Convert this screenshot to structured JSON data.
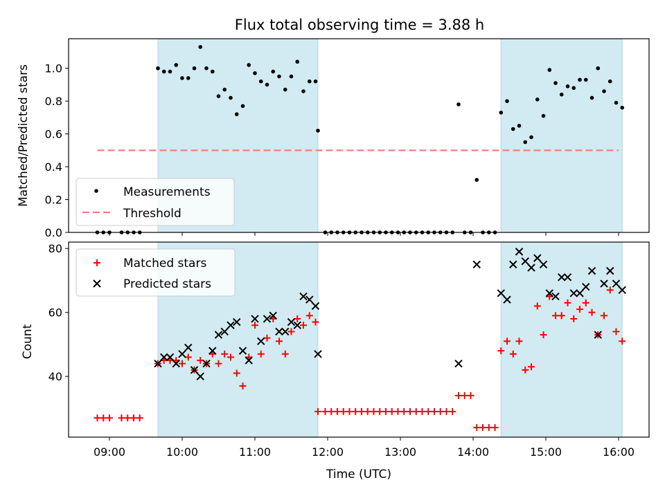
{
  "title": "Flux total observing time = 3.88 h",
  "chart_data": [
    {
      "type": "scatter",
      "ylabel": "Matched/Predicted stars",
      "xlabel": "",
      "ylim": [
        0,
        1.18
      ],
      "yticks": [
        "0.0",
        "0.2",
        "0.4",
        "0.6",
        "0.8",
        "1.0"
      ],
      "legend_position": "lower-left",
      "threshold": {
        "name": "Threshold",
        "y": 0.5,
        "x_start": "08:50",
        "x_end": "16:00",
        "color": "#f08080"
      },
      "shaded_intervals": [
        {
          "start": "09:40",
          "end": "11:52"
        },
        {
          "start": "14:23",
          "end": "16:03"
        }
      ],
      "shade_color": "#add8e6",
      "series": [
        {
          "name": "Measurements",
          "color": "#000000",
          "points": [
            [
              "08:50",
              0.0
            ],
            [
              "08:55",
              0.0
            ],
            [
              "09:00",
              0.0
            ],
            [
              "09:10",
              0.0
            ],
            [
              "09:15",
              0.0
            ],
            [
              "09:20",
              0.0
            ],
            [
              "09:25",
              0.0
            ],
            [
              "09:40",
              1.0
            ],
            [
              "09:45",
              0.98
            ],
            [
              "09:50",
              0.98
            ],
            [
              "09:55",
              1.02
            ],
            [
              "10:00",
              0.94
            ],
            [
              "10:05",
              0.94
            ],
            [
              "10:10",
              1.0
            ],
            [
              "10:15",
              1.13
            ],
            [
              "10:20",
              1.0
            ],
            [
              "10:25",
              0.98
            ],
            [
              "10:30",
              0.83
            ],
            [
              "10:35",
              0.87
            ],
            [
              "10:40",
              0.82
            ],
            [
              "10:45",
              0.72
            ],
            [
              "10:50",
              0.77
            ],
            [
              "10:55",
              1.02
            ],
            [
              "11:00",
              0.97
            ],
            [
              "11:05",
              0.92
            ],
            [
              "11:10",
              0.9
            ],
            [
              "11:15",
              0.98
            ],
            [
              "11:20",
              0.95
            ],
            [
              "11:25",
              0.87
            ],
            [
              "11:30",
              0.95
            ],
            [
              "11:35",
              1.04
            ],
            [
              "11:40",
              0.86
            ],
            [
              "11:45",
              0.92
            ],
            [
              "11:50",
              0.92
            ],
            [
              "11:52",
              0.62
            ],
            [
              "11:58",
              0.0
            ],
            [
              "12:03",
              0.0
            ],
            [
              "12:08",
              0.0
            ],
            [
              "12:13",
              0.0
            ],
            [
              "12:18",
              0.0
            ],
            [
              "12:23",
              0.0
            ],
            [
              "12:28",
              0.0
            ],
            [
              "12:33",
              0.0
            ],
            [
              "12:38",
              0.0
            ],
            [
              "12:43",
              0.0
            ],
            [
              "12:48",
              0.0
            ],
            [
              "12:53",
              0.0
            ],
            [
              "12:58",
              0.0
            ],
            [
              "13:03",
              0.0
            ],
            [
              "13:08",
              0.0
            ],
            [
              "13:13",
              0.0
            ],
            [
              "13:18",
              0.0
            ],
            [
              "13:23",
              0.0
            ],
            [
              "13:28",
              0.0
            ],
            [
              "13:33",
              0.0
            ],
            [
              "13:38",
              0.0
            ],
            [
              "13:43",
              0.0
            ],
            [
              "13:48",
              0.78
            ],
            [
              "13:53",
              0.0
            ],
            [
              "13:58",
              0.0
            ],
            [
              "14:03",
              0.32
            ],
            [
              "14:08",
              0.0
            ],
            [
              "14:13",
              0.0
            ],
            [
              "14:18",
              0.0
            ],
            [
              "14:23",
              0.73
            ],
            [
              "14:28",
              0.8
            ],
            [
              "14:33",
              0.63
            ],
            [
              "14:38",
              0.65
            ],
            [
              "14:43",
              0.55
            ],
            [
              "14:48",
              0.58
            ],
            [
              "14:53",
              0.81
            ],
            [
              "14:58",
              0.71
            ],
            [
              "15:03",
              0.99
            ],
            [
              "15:08",
              0.91
            ],
            [
              "15:13",
              0.84
            ],
            [
              "15:18",
              0.89
            ],
            [
              "15:23",
              0.88
            ],
            [
              "15:28",
              0.93
            ],
            [
              "15:33",
              0.93
            ],
            [
              "15:38",
              0.82
            ],
            [
              "15:43",
              1.0
            ],
            [
              "15:48",
              0.86
            ],
            [
              "15:53",
              0.92
            ],
            [
              "15:58",
              0.79
            ],
            [
              "16:03",
              0.76
            ]
          ]
        }
      ]
    },
    {
      "type": "scatter",
      "ylabel": "Count",
      "xlabel": "Time (UTC)",
      "ylim": [
        21,
        82
      ],
      "yticks": [
        "40",
        "60",
        "80"
      ],
      "xticks": [
        "09:00",
        "10:00",
        "11:00",
        "12:00",
        "13:00",
        "14:00",
        "15:00",
        "16:00"
      ],
      "legend_position": "upper-left",
      "shaded_intervals": [
        {
          "start": "09:40",
          "end": "11:52"
        },
        {
          "start": "14:23",
          "end": "16:03"
        }
      ],
      "series": [
        {
          "name": "Matched stars",
          "color": "#ff0000",
          "marker": "+",
          "points": [
            [
              "08:50",
              27
            ],
            [
              "08:55",
              27
            ],
            [
              "09:00",
              27
            ],
            [
              "09:10",
              27
            ],
            [
              "09:15",
              27
            ],
            [
              "09:20",
              27
            ],
            [
              "09:25",
              27
            ],
            [
              "09:40",
              44
            ],
            [
              "09:45",
              45
            ],
            [
              "09:50",
              45
            ],
            [
              "09:55",
              45
            ],
            [
              "10:00",
              44
            ],
            [
              "10:05",
              46
            ],
            [
              "10:10",
              42
            ],
            [
              "10:15",
              45
            ],
            [
              "10:20",
              44
            ],
            [
              "10:25",
              47
            ],
            [
              "10:30",
              44
            ],
            [
              "10:35",
              47
            ],
            [
              "10:40",
              46
            ],
            [
              "10:45",
              41
            ],
            [
              "10:50",
              37
            ],
            [
              "10:55",
              46
            ],
            [
              "11:00",
              56
            ],
            [
              "11:05",
              47
            ],
            [
              "11:10",
              52
            ],
            [
              "11:15",
              58
            ],
            [
              "11:20",
              51
            ],
            [
              "11:25",
              47
            ],
            [
              "11:30",
              54
            ],
            [
              "11:35",
              58
            ],
            [
              "11:40",
              56
            ],
            [
              "11:45",
              59
            ],
            [
              "11:50",
              57
            ],
            [
              "11:52",
              29
            ],
            [
              "11:58",
              29
            ],
            [
              "12:03",
              29
            ],
            [
              "12:08",
              29
            ],
            [
              "12:13",
              29
            ],
            [
              "12:18",
              29
            ],
            [
              "12:23",
              29
            ],
            [
              "12:28",
              29
            ],
            [
              "12:33",
              29
            ],
            [
              "12:38",
              29
            ],
            [
              "12:43",
              29
            ],
            [
              "12:48",
              29
            ],
            [
              "12:53",
              29
            ],
            [
              "12:58",
              29
            ],
            [
              "13:03",
              29
            ],
            [
              "13:08",
              29
            ],
            [
              "13:13",
              29
            ],
            [
              "13:18",
              29
            ],
            [
              "13:23",
              29
            ],
            [
              "13:28",
              29
            ],
            [
              "13:33",
              29
            ],
            [
              "13:38",
              29
            ],
            [
              "13:43",
              29
            ],
            [
              "13:48",
              34
            ],
            [
              "13:53",
              34
            ],
            [
              "13:58",
              34
            ],
            [
              "14:03",
              24
            ],
            [
              "14:08",
              24
            ],
            [
              "14:13",
              24
            ],
            [
              "14:18",
              24
            ],
            [
              "14:23",
              48
            ],
            [
              "14:28",
              51
            ],
            [
              "14:33",
              47
            ],
            [
              "14:38",
              51
            ],
            [
              "14:43",
              42
            ],
            [
              "14:48",
              43
            ],
            [
              "14:53",
              62
            ],
            [
              "14:58",
              53
            ],
            [
              "15:03",
              65
            ],
            [
              "15:08",
              59
            ],
            [
              "15:13",
              59
            ],
            [
              "15:18",
              63
            ],
            [
              "15:23",
              58
            ],
            [
              "15:28",
              61
            ],
            [
              "15:33",
              63
            ],
            [
              "15:38",
              60
            ],
            [
              "15:43",
              53
            ],
            [
              "15:48",
              59
            ],
            [
              "15:53",
              67
            ],
            [
              "15:58",
              54
            ],
            [
              "16:03",
              51
            ]
          ]
        },
        {
          "name": "Predicted stars",
          "color": "#000000",
          "marker": "x",
          "points": [
            [
              "09:40",
              44
            ],
            [
              "09:45",
              46
            ],
            [
              "09:50",
              46
            ],
            [
              "09:55",
              44
            ],
            [
              "10:00",
              47
            ],
            [
              "10:05",
              49
            ],
            [
              "10:10",
              42
            ],
            [
              "10:15",
              40
            ],
            [
              "10:20",
              44
            ],
            [
              "10:25",
              48
            ],
            [
              "10:30",
              53
            ],
            [
              "10:35",
              54
            ],
            [
              "10:40",
              56
            ],
            [
              "10:45",
              57
            ],
            [
              "10:50",
              48
            ],
            [
              "10:55",
              45
            ],
            [
              "11:00",
              58
            ],
            [
              "11:05",
              51
            ],
            [
              "11:10",
              58
            ],
            [
              "11:15",
              59
            ],
            [
              "11:20",
              54
            ],
            [
              "11:25",
              54
            ],
            [
              "11:30",
              57
            ],
            [
              "11:35",
              56
            ],
            [
              "11:40",
              65
            ],
            [
              "11:45",
              64
            ],
            [
              "11:50",
              62
            ],
            [
              "11:52",
              47
            ],
            [
              "13:48",
              44
            ],
            [
              "14:03",
              75
            ],
            [
              "14:23",
              66
            ],
            [
              "14:28",
              64
            ],
            [
              "14:33",
              75
            ],
            [
              "14:38",
              79
            ],
            [
              "14:43",
              76
            ],
            [
              "14:48",
              74
            ],
            [
              "14:53",
              77
            ],
            [
              "14:58",
              75
            ],
            [
              "15:03",
              66
            ],
            [
              "15:08",
              65
            ],
            [
              "15:13",
              71
            ],
            [
              "15:18",
              71
            ],
            [
              "15:23",
              66
            ],
            [
              "15:28",
              66
            ],
            [
              "15:33",
              68
            ],
            [
              "15:38",
              73
            ],
            [
              "15:43",
              53
            ],
            [
              "15:48",
              69
            ],
            [
              "15:53",
              73
            ],
            [
              "15:58",
              69
            ],
            [
              "16:03",
              67
            ]
          ]
        }
      ]
    }
  ]
}
